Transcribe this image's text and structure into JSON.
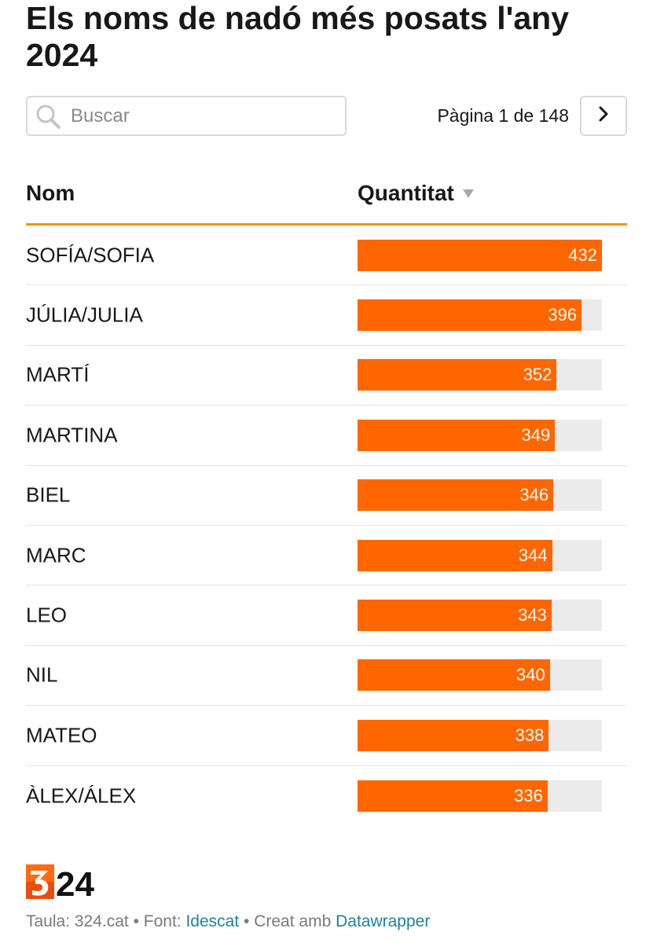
{
  "title": "Els noms de nadó més posats l'any 2024",
  "search": {
    "placeholder": "Buscar",
    "icon": "search-icon"
  },
  "pagination": {
    "text": "Pàgina 1 de 148",
    "next_icon": "chevron-right-icon"
  },
  "table": {
    "headers": {
      "name": "Nom",
      "quantity": "Quantitat",
      "sort_icon": "sort-desc-icon"
    },
    "max": 432,
    "rows": [
      {
        "name": "SOFÍA/SOFIA",
        "value": 432
      },
      {
        "name": "JÚLIA/JULIA",
        "value": 396
      },
      {
        "name": "MARTÍ",
        "value": 352
      },
      {
        "name": "MARTINA",
        "value": 349
      },
      {
        "name": "BIEL",
        "value": 346
      },
      {
        "name": "MARC",
        "value": 344
      },
      {
        "name": "LEO",
        "value": 343
      },
      {
        "name": "NIL",
        "value": 340
      },
      {
        "name": "MATEO",
        "value": 338
      },
      {
        "name": "ÀLEX/ÁLEX",
        "value": 336
      }
    ]
  },
  "logo": {
    "text": "324"
  },
  "footer": {
    "prefix": "Taula: 324.cat • Font: ",
    "source_link": "Idescat",
    "middle": " • Creat amb ",
    "tool_link": "Datawrapper"
  },
  "colors": {
    "bar": "#ff6600",
    "track": "#ebebeb",
    "accent_line": "#f39200",
    "link": "#1d81a2"
  }
}
